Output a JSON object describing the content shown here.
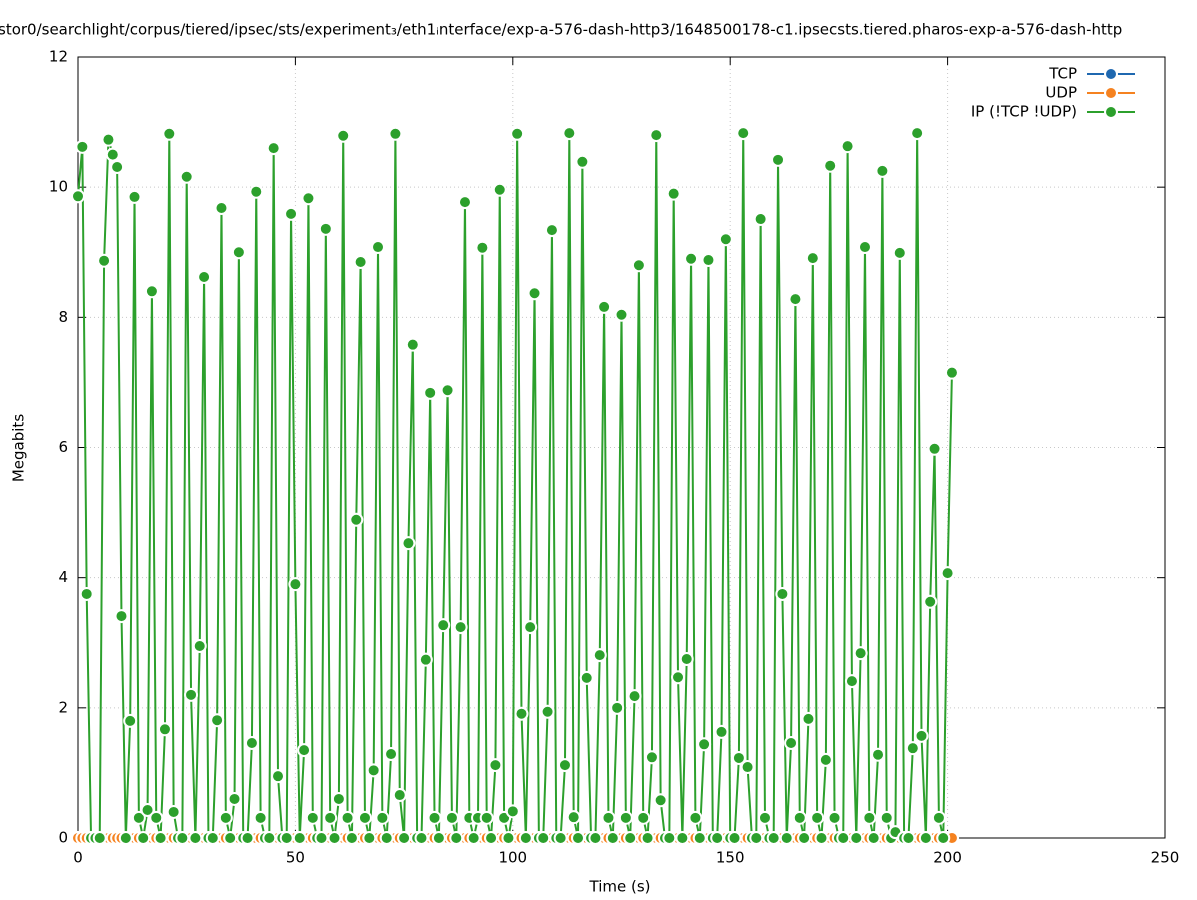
{
  "chart_data": {
    "type": "line",
    "title": "stor0/searchlight/corpus/tiered/ipsec/sts/experiment₃/eth1ᵢnterface/exp-a-576-dash-http3/1648500178-c1.ipsecsts.tiered.pharos-exp-a-576-dash-http",
    "xlabel": "Time (s)",
    "ylabel": "Megabits",
    "xlim": [
      0,
      250
    ],
    "xticks": [
      0,
      50,
      100,
      150,
      200,
      250
    ],
    "ylim": [
      0,
      12
    ],
    "yticks": [
      0,
      2,
      4,
      6,
      8,
      10,
      12
    ],
    "grid": true,
    "legend": "top-right",
    "x": [
      0,
      1,
      2,
      3,
      4,
      5,
      6,
      7,
      8,
      9,
      10,
      11,
      12,
      13,
      14,
      15,
      16,
      17,
      18,
      19,
      20,
      21,
      22,
      23,
      24,
      25,
      26,
      27,
      28,
      29,
      30,
      31,
      32,
      33,
      34,
      35,
      36,
      37,
      38,
      39,
      40,
      41,
      42,
      43,
      44,
      45,
      46,
      47,
      48,
      49,
      50,
      51,
      52,
      53,
      54,
      55,
      56,
      57,
      58,
      59,
      60,
      61,
      62,
      63,
      64,
      65,
      66,
      67,
      68,
      69,
      70,
      71,
      72,
      73,
      74,
      75,
      76,
      77,
      78,
      79,
      80,
      81,
      82,
      83,
      84,
      85,
      86,
      87,
      88,
      89,
      90,
      91,
      92,
      93,
      94,
      95,
      96,
      97,
      98,
      99,
      100,
      101,
      102,
      103,
      104,
      105,
      106,
      107,
      108,
      109,
      110,
      111,
      112,
      113,
      114,
      115,
      116,
      117,
      118,
      119,
      120,
      121,
      122,
      123,
      124,
      125,
      126,
      127,
      128,
      129,
      130,
      131,
      132,
      133,
      134,
      135,
      136,
      137,
      138,
      139,
      140,
      141,
      142,
      143,
      144,
      145,
      146,
      147,
      148,
      149,
      150,
      151,
      152,
      153,
      154,
      155,
      156,
      157,
      158,
      159,
      160,
      161,
      162,
      163,
      164,
      165,
      166,
      167,
      168,
      169,
      170,
      171,
      172,
      173,
      174,
      175,
      176,
      177,
      178,
      179,
      180,
      181,
      182,
      183,
      184,
      185,
      186,
      187,
      188,
      189,
      190,
      191,
      192,
      193,
      194,
      195,
      196,
      197,
      198,
      199,
      200,
      201
    ],
    "series": [
      {
        "name": "TCP",
        "color": "#1f68b0",
        "values": [
          0,
          0,
          0,
          0,
          0,
          0,
          0,
          0,
          0,
          0,
          0,
          0,
          0,
          0,
          0,
          0,
          0,
          0,
          0,
          0,
          0,
          0,
          0,
          0,
          0,
          0,
          0,
          0,
          0,
          0,
          0,
          0,
          0,
          0,
          0,
          0,
          0,
          0,
          0,
          0,
          0,
          0,
          0,
          0,
          0,
          0,
          0,
          0,
          0,
          0,
          0,
          0,
          0,
          0,
          0,
          0,
          0,
          0,
          0,
          0,
          0,
          0,
          0,
          0,
          0,
          0,
          0,
          0,
          0,
          0,
          0,
          0,
          0,
          0,
          0,
          0,
          0,
          0,
          0,
          0,
          0,
          0,
          0,
          0,
          0,
          0,
          0,
          0,
          0,
          0,
          0,
          0,
          0,
          0,
          0,
          0,
          0,
          0,
          0,
          0,
          0,
          0,
          0,
          0,
          0,
          0,
          0,
          0,
          0,
          0,
          0,
          0,
          0,
          0,
          0,
          0,
          0,
          0,
          0,
          0,
          0,
          0,
          0,
          0,
          0,
          0,
          0,
          0,
          0,
          0,
          0,
          0,
          0,
          0,
          0,
          0,
          0,
          0,
          0,
          0,
          0,
          0,
          0,
          0,
          0,
          0,
          0,
          0,
          0,
          0,
          0,
          0,
          0,
          0,
          0,
          0,
          0,
          0,
          0,
          0,
          0,
          0,
          0,
          0,
          0,
          0,
          0,
          0,
          0,
          0,
          0,
          0,
          0,
          0,
          0,
          0,
          0,
          0,
          0,
          0,
          0,
          0,
          0,
          0,
          0,
          0,
          0,
          0,
          0,
          0,
          0,
          0,
          0,
          0,
          0,
          0,
          0,
          0,
          0,
          0,
          0,
          0
        ]
      },
      {
        "name": "UDP",
        "color": "#f58220",
        "values": [
          0,
          0,
          0,
          0,
          0,
          0,
          0,
          0,
          0,
          0,
          0,
          0,
          0,
          0,
          0,
          0,
          0,
          0,
          0,
          0,
          0,
          0,
          0,
          0,
          0,
          0,
          0,
          0,
          0,
          0,
          0,
          0,
          0,
          0,
          0,
          0,
          0,
          0,
          0,
          0,
          0,
          0,
          0,
          0,
          0,
          0,
          0,
          0,
          0,
          0,
          0,
          0,
          0,
          0,
          0,
          0,
          0,
          0,
          0,
          0,
          0,
          0,
          0,
          0,
          0,
          0,
          0,
          0,
          0,
          0,
          0,
          0,
          0,
          0,
          0,
          0,
          0,
          0,
          0,
          0,
          0,
          0,
          0,
          0,
          0,
          0,
          0,
          0,
          0,
          0,
          0,
          0,
          0,
          0,
          0,
          0,
          0,
          0,
          0,
          0,
          0,
          0,
          0,
          0,
          0,
          0,
          0,
          0,
          0,
          0,
          0,
          0,
          0,
          0,
          0,
          0,
          0,
          0,
          0,
          0,
          0,
          0,
          0,
          0,
          0,
          0,
          0,
          0,
          0,
          0,
          0,
          0,
          0,
          0,
          0,
          0,
          0,
          0,
          0,
          0,
          0,
          0,
          0,
          0,
          0,
          0,
          0,
          0,
          0,
          0,
          0,
          0,
          0,
          0,
          0,
          0,
          0,
          0,
          0,
          0,
          0,
          0,
          0,
          0,
          0,
          0,
          0,
          0,
          0,
          0,
          0,
          0,
          0,
          0,
          0,
          0,
          0,
          0,
          0,
          0,
          0,
          0,
          0,
          0,
          0,
          0,
          0,
          0,
          0,
          0,
          0,
          0,
          0,
          0,
          0,
          0,
          0,
          0,
          0,
          0,
          0,
          0
        ]
      },
      {
        "name": "IP (!TCP  !UDP)",
        "color": "#2ca02c",
        "values": [
          9.86,
          10.62,
          3.75,
          0,
          0,
          0,
          8.87,
          10.73,
          10.5,
          10.31,
          3.41,
          0,
          1.8,
          9.85,
          0.31,
          0,
          0.43,
          8.4,
          0.31,
          0,
          1.67,
          10.82,
          0.4,
          0,
          0,
          10.16,
          2.2,
          0,
          2.95,
          8.62,
          0,
          0,
          1.81,
          9.68,
          0.31,
          0,
          0.6,
          9.0,
          0,
          0,
          1.46,
          9.93,
          0.31,
          0,
          0,
          10.6,
          0.95,
          0,
          0,
          9.59,
          3.9,
          0,
          1.35,
          9.83,
          0.31,
          0,
          0,
          9.36,
          0.31,
          0,
          0.6,
          10.79,
          0.31,
          0,
          4.89,
          8.85,
          0.31,
          0,
          1.04,
          9.08,
          0.31,
          0,
          1.29,
          10.82,
          0.66,
          0,
          4.53,
          7.58,
          0,
          0,
          2.74,
          6.84,
          0.31,
          0,
          3.27,
          6.88,
          0.31,
          0,
          3.24,
          9.77,
          0.31,
          0,
          0.31,
          9.07,
          0.31,
          0,
          1.12,
          9.96,
          0.31,
          0,
          0.41,
          10.82,
          1.91,
          0,
          3.24,
          8.37,
          0,
          0,
          1.94,
          9.34,
          0,
          0,
          1.12,
          10.83,
          0.32,
          0,
          10.39,
          2.46,
          0,
          0,
          2.81,
          8.16,
          0.31,
          0,
          2.0,
          8.04,
          0.31,
          0,
          2.18,
          8.8,
          0.31,
          0,
          1.24,
          10.8,
          0.58,
          0,
          0,
          9.9,
          2.47,
          0,
          2.75,
          8.9,
          0.31,
          0,
          1.44,
          8.88,
          0,
          0,
          1.63,
          9.2,
          0,
          0,
          1.23,
          10.83,
          1.09,
          0,
          0,
          9.51,
          0.31,
          0,
          0,
          10.42,
          3.75,
          0,
          1.46,
          8.28,
          0.31,
          0,
          1.83,
          8.91,
          0.31,
          0,
          1.2,
          10.33,
          0.31,
          0,
          0,
          10.63,
          2.41,
          0,
          2.84,
          9.08,
          0.31,
          0,
          1.28,
          10.25,
          0.31,
          0,
          0.09,
          8.99,
          0,
          0,
          1.38,
          10.83,
          1.57,
          0,
          3.63,
          5.98,
          0.31,
          0,
          4.07,
          7.15
        ]
      }
    ]
  }
}
